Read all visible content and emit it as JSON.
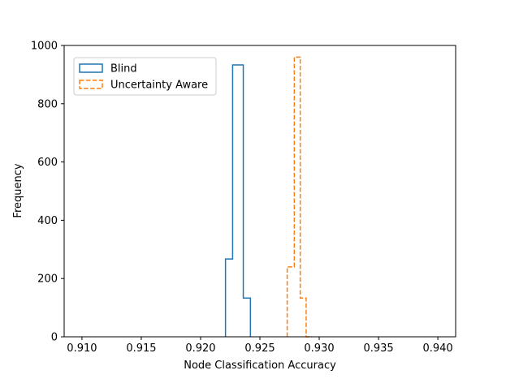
{
  "chart_data": {
    "type": "histogram",
    "xlabel": "Node Classification Accuracy",
    "ylabel": "Frequency",
    "xlim": [
      0.9085,
      0.9415
    ],
    "ylim": [
      0,
      1000
    ],
    "xticks": [
      "0.910",
      "0.915",
      "0.920",
      "0.925",
      "0.930",
      "0.935",
      "0.940"
    ],
    "xtick_values": [
      0.91,
      0.915,
      0.92,
      0.925,
      0.93,
      0.935,
      0.94
    ],
    "yticks": [
      "0",
      "200",
      "400",
      "600",
      "800",
      "1000"
    ],
    "ytick_values": [
      0,
      200,
      400,
      600,
      800,
      1000
    ],
    "legend_position": "upper-left",
    "grid": false,
    "series": [
      {
        "name": "Blind",
        "color": "#1f77b4",
        "style": "solid",
        "bin_edges": [
          0.9221,
          0.9227,
          0.9236,
          0.9242
        ],
        "counts": [
          267,
          933,
          133
        ]
      },
      {
        "name": "Uncertainty Aware",
        "color": "#ff7f0e",
        "style": "dashed",
        "bin_edges": [
          0.9273,
          0.9279,
          0.9284,
          0.9289,
          0.9294
        ],
        "counts": [
          240,
          960,
          133,
          0
        ]
      }
    ]
  }
}
